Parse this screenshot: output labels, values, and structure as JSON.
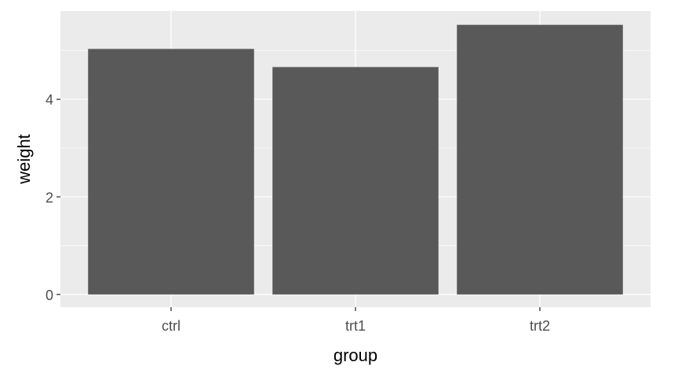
{
  "chart_data": {
    "type": "bar",
    "title": "",
    "xlabel": "group",
    "ylabel": "weight",
    "categories": [
      "ctrl",
      "trt1",
      "trt2"
    ],
    "values": [
      5.032,
      4.661,
      5.526
    ],
    "ylim": [
      -0.26,
      5.81
    ],
    "yticks": [
      0,
      2,
      4
    ],
    "ytick_labels": [
      "0",
      "2",
      "4"
    ],
    "grid": true,
    "colors": {
      "bar": "#595959",
      "panel": "#EBEBEB",
      "grid": "#FFFFFF"
    }
  }
}
